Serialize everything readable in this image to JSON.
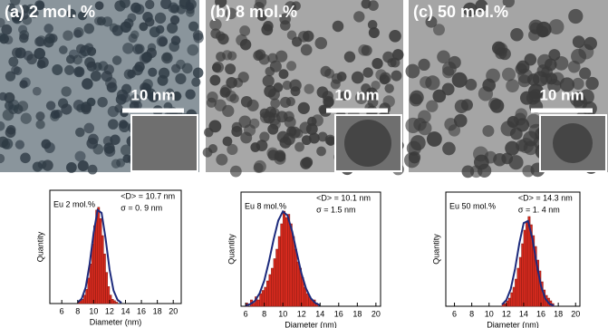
{
  "images": [
    {
      "label": "(a) 2 mol. %",
      "scale_bar": "10 nm"
    },
    {
      "label": "(b) 8 mol.%",
      "scale_bar": "10 nm"
    },
    {
      "label": "(c) 50 mol.%",
      "scale_bar": "10 nm"
    }
  ],
  "chart_data": [
    {
      "type": "histogram",
      "x_label": "Diameter (nm)",
      "y_label": "Quantity",
      "annotations": [
        "Eu 2 mol.%",
        "<D> = 10.7  nm",
        "σ = 0.  9 nm"
      ],
      "bins": [
        8,
        8.25,
        8.5,
        8.75,
        9,
        9.25,
        9.5,
        9.75,
        10,
        10.25,
        10.5,
        10.75,
        11,
        11.25,
        11.5,
        11.75,
        12,
        12.25,
        12.5,
        12.75,
        13
      ],
      "values": [
        1,
        2,
        3,
        6,
        10,
        18,
        28,
        42,
        55,
        66,
        68,
        60,
        48,
        35,
        22,
        12,
        6,
        3,
        2,
        1
      ],
      "color": "#d62a1e",
      "fit": {
        "x": [
          8,
          8.5,
          9,
          9.5,
          10,
          10.5,
          11,
          11.5,
          12,
          12.5,
          13,
          13.5
        ],
        "y": [
          0.8,
          3.4,
          11.4,
          28,
          50,
          66,
          64,
          46,
          24,
          9.2,
          2.6,
          0.5
        ],
        "color": "#1c2a7c"
      },
      "xlim": [
        4.5,
        21
      ],
      "xticks": [
        6,
        8,
        10,
        12,
        14,
        16,
        18,
        20
      ],
      "ylim": [
        0,
        80
      ]
    },
    {
      "type": "histogram",
      "x_label": "Diameter (nm)",
      "y_label": "Quantity",
      "annotations": [
        "Eu 8 mol.%",
        "<D> = 10.1 nm",
        "σ = 1.5 nm"
      ],
      "bins": [
        6,
        6.25,
        6.5,
        6.75,
        7,
        7.25,
        7.5,
        7.75,
        8,
        8.25,
        8.5,
        8.75,
        9,
        9.25,
        9.5,
        9.75,
        10,
        10.25,
        10.5,
        10.75,
        11,
        11.25,
        11.5,
        11.75,
        12,
        12.25,
        12.5,
        12.75,
        13,
        13.25,
        13.5,
        13.75,
        14
      ],
      "values": [
        1,
        0,
        2,
        1,
        3,
        2,
        4,
        5,
        6,
        8,
        10,
        12,
        15,
        18,
        22,
        26,
        30,
        28,
        29,
        26,
        22,
        18,
        14,
        12,
        9,
        6,
        4,
        3,
        2,
        2,
        1,
        0
      ],
      "color": "#d62a1e",
      "fit": {
        "x": [
          6,
          6.5,
          7,
          7.5,
          8,
          8.5,
          9,
          9.5,
          10,
          10.5,
          11,
          11.5,
          12,
          12.5,
          13,
          13.5,
          14
        ],
        "y": [
          0.2,
          0.7,
          1.7,
          4.1,
          8.1,
          14.1,
          21,
          27,
          29.9,
          28.6,
          23.6,
          16.8,
          10.3,
          5.5,
          2.5,
          1,
          0.3
        ],
        "color": "#1c2a7c"
      },
      "xlim": [
        5.5,
        20.5
      ],
      "xticks": [
        6,
        8,
        10,
        12,
        14,
        16,
        18,
        20
      ],
      "ylim": [
        0,
        36
      ]
    },
    {
      "type": "histogram",
      "x_label": "Diameter (nm)",
      "y_label": "Quantity",
      "annotations": [
        "Eu 50 mol.%",
        "<D> = 14.3 nm",
        "σ = 1.  4 nm"
      ],
      "bins": [
        11.5,
        11.75,
        12,
        12.25,
        12.5,
        12.75,
        13,
        13.25,
        13.5,
        13.75,
        14,
        14.25,
        14.5,
        14.75,
        15,
        15.25,
        15.5,
        15.75,
        16,
        16.25,
        16.5,
        16.75,
        17,
        17.25,
        17.5
      ],
      "values": [
        1,
        1,
        2,
        3,
        5,
        7,
        10,
        14,
        18,
        23,
        28,
        31,
        33,
        30,
        26,
        22,
        17,
        13,
        9,
        6,
        4,
        3,
        2,
        1
      ],
      "color": "#d62a1e",
      "fit": {
        "x": [
          11.5,
          12,
          12.5,
          13,
          13.5,
          14,
          14.5,
          15,
          15.5,
          16,
          16.5,
          17,
          17.5
        ],
        "y": [
          0.6,
          2.3,
          6.3,
          13.7,
          23.2,
          30.6,
          31.4,
          25,
          15.6,
          7.5,
          2.8,
          0.8,
          0.2
        ],
        "color": "#1c2a7c"
      },
      "xlim": [
        5,
        20.5
      ],
      "xticks": [
        6,
        8,
        10,
        12,
        14,
        16,
        18,
        20
      ],
      "ylim": [
        0,
        42
      ]
    }
  ]
}
